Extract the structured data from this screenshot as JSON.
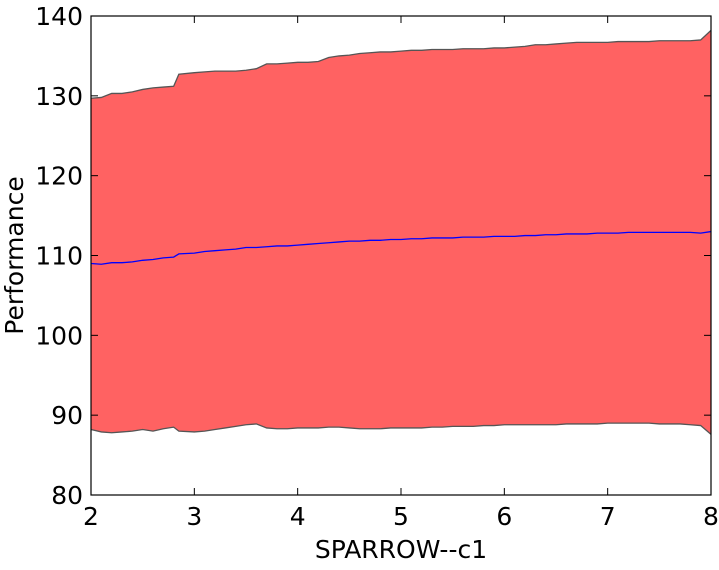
{
  "chart_data": {
    "type": "area",
    "title": "",
    "xlabel": "SPARROW--c1",
    "ylabel": "Performance",
    "xlim": [
      2,
      8
    ],
    "ylim": [
      80,
      140
    ],
    "xticks": [
      2,
      3,
      4,
      5,
      6,
      7,
      8
    ],
    "yticks": [
      80,
      90,
      100,
      110,
      120,
      130,
      140
    ],
    "xtick_labels": [
      "2",
      "3",
      "4",
      "5",
      "6",
      "7",
      "8"
    ],
    "ytick_labels": [
      "80",
      "90",
      "100",
      "110",
      "120",
      "130",
      "140"
    ],
    "grid": false,
    "colors": {
      "band_fill": "#ff6262",
      "band_edge": "#555555",
      "mean_line": "#0000ff",
      "axes": "#000000"
    },
    "x": [
      2.0,
      2.1,
      2.2,
      2.3,
      2.4,
      2.5,
      2.6,
      2.7,
      2.8,
      2.85,
      3.0,
      3.1,
      3.2,
      3.3,
      3.4,
      3.5,
      3.6,
      3.7,
      3.8,
      3.9,
      4.0,
      4.1,
      4.2,
      4.3,
      4.4,
      4.5,
      4.6,
      4.7,
      4.8,
      4.9,
      5.0,
      5.1,
      5.2,
      5.3,
      5.4,
      5.5,
      5.6,
      5.7,
      5.8,
      5.9,
      6.0,
      6.1,
      6.2,
      6.3,
      6.4,
      6.5,
      6.6,
      6.7,
      6.8,
      6.9,
      7.0,
      7.1,
      7.2,
      7.3,
      7.4,
      7.5,
      7.6,
      7.7,
      7.8,
      7.9,
      8.0
    ],
    "series": [
      {
        "role": "upper",
        "values": [
          129.7,
          129.8,
          130.3,
          130.3,
          130.5,
          130.8,
          131.0,
          131.1,
          131.2,
          132.7,
          132.9,
          133.0,
          133.1,
          133.1,
          133.1,
          133.2,
          133.4,
          134.0,
          134.0,
          134.1,
          134.2,
          134.2,
          134.3,
          134.8,
          135.0,
          135.1,
          135.3,
          135.4,
          135.5,
          135.5,
          135.6,
          135.7,
          135.7,
          135.8,
          135.8,
          135.8,
          135.9,
          135.9,
          135.9,
          136.0,
          136.0,
          136.1,
          136.2,
          136.4,
          136.4,
          136.5,
          136.6,
          136.7,
          136.7,
          136.7,
          136.7,
          136.8,
          136.8,
          136.8,
          136.8,
          136.9,
          136.9,
          136.9,
          136.9,
          137.0,
          138.2
        ]
      },
      {
        "role": "mean",
        "values": [
          109.0,
          108.9,
          109.1,
          109.1,
          109.2,
          109.4,
          109.5,
          109.7,
          109.8,
          110.2,
          110.3,
          110.5,
          110.6,
          110.7,
          110.8,
          111.0,
          111.0,
          111.1,
          111.2,
          111.2,
          111.3,
          111.4,
          111.5,
          111.6,
          111.7,
          111.8,
          111.8,
          111.9,
          111.9,
          112.0,
          112.0,
          112.1,
          112.1,
          112.2,
          112.2,
          112.2,
          112.3,
          112.3,
          112.3,
          112.4,
          112.4,
          112.4,
          112.5,
          112.5,
          112.6,
          112.6,
          112.7,
          112.7,
          112.7,
          112.8,
          112.8,
          112.8,
          112.9,
          112.9,
          112.9,
          112.9,
          112.9,
          112.9,
          112.9,
          112.8,
          113.0
        ]
      },
      {
        "role": "lower",
        "values": [
          88.2,
          87.9,
          87.8,
          87.9,
          88.0,
          88.2,
          88.0,
          88.3,
          88.5,
          88.0,
          87.9,
          88.0,
          88.2,
          88.4,
          88.6,
          88.8,
          88.9,
          88.4,
          88.3,
          88.3,
          88.4,
          88.4,
          88.4,
          88.5,
          88.5,
          88.4,
          88.3,
          88.3,
          88.3,
          88.4,
          88.4,
          88.4,
          88.4,
          88.5,
          88.5,
          88.6,
          88.6,
          88.6,
          88.7,
          88.7,
          88.8,
          88.8,
          88.8,
          88.8,
          88.8,
          88.8,
          88.9,
          88.9,
          88.9,
          88.9,
          89.0,
          89.0,
          89.0,
          89.0,
          89.0,
          88.9,
          88.9,
          88.9,
          88.8,
          88.7,
          87.6
        ]
      }
    ]
  }
}
